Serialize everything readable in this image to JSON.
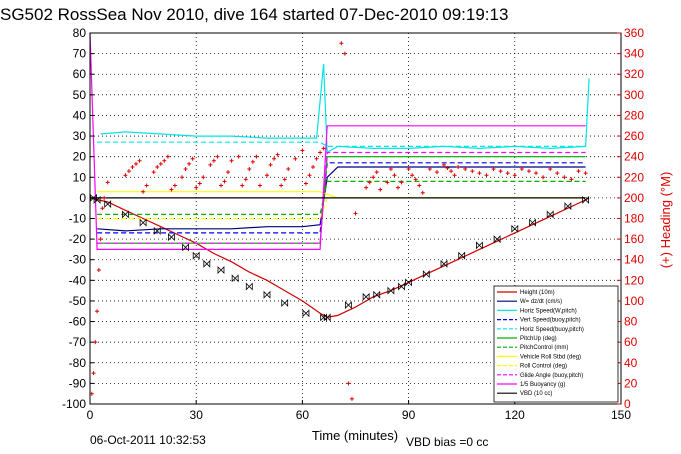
{
  "chart_data": {
    "type": "line",
    "title": "SG502 RossSea Nov 2010, dive 164 started 07-Dec-2010 09:19:13",
    "xlabel": "Time (minutes)",
    "ylabel": "",
    "ylabel_right": "(+) Heading (°M)",
    "xlim": [
      0,
      150
    ],
    "ylim": [
      -100,
      80
    ],
    "ylim_right": [
      0,
      360
    ],
    "x_ticks": [
      "0",
      "30",
      "60",
      "90",
      "120",
      "150"
    ],
    "y_ticks": [
      "-100",
      "-90",
      "-80",
      "-70",
      "-60",
      "-50",
      "-40",
      "-30",
      "-20",
      "-10",
      "0",
      "10",
      "20",
      "30",
      "40",
      "50",
      "60",
      "70",
      "80"
    ],
    "y_ticks_right": [
      "0",
      "20",
      "40",
      "60",
      "80",
      "100",
      "120",
      "140",
      "160",
      "180",
      "200",
      "220",
      "240",
      "260",
      "280",
      "300",
      "320",
      "340",
      "360"
    ],
    "grid": true,
    "legend_position": "bottom-right",
    "footer_left": "06-Oct-2011 10:32:53",
    "footer_right": "VBD bias =0 cc",
    "series": [
      {
        "name": "Height (10m)",
        "color": "#d00000",
        "style": "solid",
        "x": [
          0,
          5,
          10,
          15,
          20,
          25,
          30,
          35,
          40,
          45,
          50,
          55,
          60,
          65,
          67,
          70,
          75,
          80,
          85,
          90,
          95,
          100,
          105,
          110,
          115,
          120,
          125,
          130,
          135,
          140,
          141
        ],
        "y": [
          0,
          -2,
          -6,
          -10,
          -14,
          -18,
          -22,
          -27,
          -31,
          -36,
          -40,
          -45,
          -50,
          -56,
          -58,
          -57,
          -53,
          -48,
          -45,
          -41,
          -37,
          -33,
          -29,
          -25,
          -21,
          -17,
          -13,
          -9,
          -5,
          -1,
          0
        ]
      },
      {
        "name": "W= dz/dt (cm/s)",
        "color": "#000080",
        "style": "solid",
        "x": [
          2,
          10,
          20,
          30,
          40,
          50,
          60,
          65,
          67,
          70,
          80,
          90,
          100,
          110,
          120,
          130,
          140
        ],
        "y": [
          -15,
          -16,
          -15,
          -15,
          -15,
          -14,
          -14,
          -13,
          10,
          15,
          15,
          15,
          15,
          15,
          15,
          15,
          15
        ]
      },
      {
        "name": "Horiz Speed(W,pitch)",
        "color": "#00e5e5",
        "style": "solid",
        "x": [
          3,
          10,
          20,
          30,
          40,
          50,
          60,
          64,
          66,
          67,
          70,
          80,
          90,
          100,
          110,
          120,
          130,
          140,
          141
        ],
        "y": [
          31,
          32,
          31,
          30,
          30,
          29,
          29,
          29,
          65,
          22,
          25,
          24,
          24,
          25,
          24,
          25,
          24,
          25,
          58
        ]
      },
      {
        "name": "Vert Speed(buoy,pitch)",
        "color": "#0000ff",
        "style": "dashed",
        "x": [
          2,
          30,
          65,
          67,
          140
        ],
        "y": [
          -17,
          -17,
          -17,
          17,
          17
        ]
      },
      {
        "name": "Horiz Speed(buoy,pitch)",
        "color": "#00e5e5",
        "style": "dashed",
        "x": [
          2,
          30,
          65,
          67,
          140
        ],
        "y": [
          27,
          27,
          27,
          25,
          25
        ]
      },
      {
        "name": "PitchUp (deg)",
        "color": "#00b000",
        "style": "solid",
        "x": [
          2,
          30,
          65,
          67,
          140
        ],
        "y": [
          -22,
          -22,
          -22,
          20,
          20
        ]
      },
      {
        "name": "PitchControl (mm)",
        "color": "#00b000",
        "style": "dashed",
        "x": [
          2,
          30,
          65,
          67,
          140
        ],
        "y": [
          -8,
          -8,
          -8,
          8,
          8
        ]
      },
      {
        "name": "Vehicle Roll Stbd (deg)",
        "color": "#ffff00",
        "style": "solid",
        "x": [
          2,
          20,
          40,
          60,
          65,
          70,
          90,
          110,
          130,
          140
        ],
        "y": [
          3,
          3,
          3,
          3,
          3,
          0,
          0,
          0,
          0,
          0
        ]
      },
      {
        "name": "Roll Control (deg)",
        "color": "#ffff00",
        "style": "dashed",
        "x": [
          2,
          30,
          65,
          67,
          140
        ],
        "y": [
          -10,
          -10,
          -10,
          0,
          0
        ]
      },
      {
        "name": "Glide Angle (buoy,pitch)",
        "color": "#ff00ff",
        "style": "dashed",
        "x": [
          2,
          30,
          65,
          67,
          140
        ],
        "y": [
          -22,
          -22,
          -22,
          22,
          22
        ]
      },
      {
        "name": "1/5 Buoyancy (g)",
        "color": "#ff00ff",
        "style": "solid",
        "x": [
          0,
          2,
          30,
          65,
          67,
          140
        ],
        "y": [
          80,
          -25,
          -25,
          -25,
          35,
          35
        ]
      },
      {
        "name": "VBD (10 cc)",
        "color": "#000000",
        "style": "solid",
        "x": [
          0,
          140
        ],
        "y": [
          0,
          0
        ]
      }
    ],
    "heading_points": {
      "name": "(+) Heading (°M)",
      "color": "#e00000",
      "x": [
        0.5,
        1,
        1.5,
        2,
        2.5,
        3,
        3.5,
        4,
        5,
        10,
        11,
        12,
        13,
        14,
        15,
        16,
        18,
        19,
        20,
        21,
        22,
        23,
        24,
        26,
        27,
        28,
        29,
        30,
        31,
        32,
        34,
        35,
        36,
        37,
        38,
        39,
        40,
        42,
        43,
        44,
        45,
        46,
        47,
        48,
        50,
        51,
        52,
        53,
        54,
        55,
        56,
        58,
        60,
        61,
        62,
        63,
        64,
        65,
        66,
        71,
        72,
        73,
        74,
        75,
        78,
        79,
        80,
        81,
        82,
        84,
        85,
        86,
        87,
        88,
        90,
        91,
        92,
        93,
        94,
        96,
        98,
        100,
        101,
        102,
        103,
        104,
        106,
        108,
        110,
        112,
        114,
        116,
        118,
        120,
        122,
        124,
        126,
        128,
        130,
        132,
        134,
        136,
        138,
        140
      ],
      "y": [
        10,
        30,
        60,
        90,
        130,
        160,
        190,
        200,
        215,
        222,
        226,
        230,
        233,
        236,
        206,
        212,
        225,
        230,
        233,
        236,
        240,
        208,
        212,
        220,
        228,
        233,
        238,
        210,
        214,
        220,
        232,
        236,
        240,
        212,
        216,
        225,
        236,
        240,
        212,
        218,
        228,
        235,
        240,
        212,
        222,
        232,
        238,
        242,
        212,
        218,
        228,
        238,
        246,
        214,
        222,
        230,
        238,
        244,
        248,
        350,
        340,
        20,
        5,
        185,
        210,
        215,
        220,
        225,
        208,
        215,
        228,
        222,
        210,
        215,
        228,
        222,
        218,
        212,
        205,
        228,
        225,
        232,
        229,
        226,
        222,
        230,
        228,
        226,
        224,
        222,
        228,
        226,
        224,
        222,
        228,
        226,
        224,
        220,
        228,
        224,
        220,
        218,
        226,
        224
      ]
    },
    "vbd_markers": {
      "name": "VBD markers",
      "x": [
        1,
        2,
        5,
        10,
        15,
        19,
        23,
        27,
        30,
        33,
        37,
        41,
        45,
        50,
        55,
        61,
        66,
        67,
        73,
        78,
        81,
        85,
        88,
        90,
        95,
        100,
        105,
        110,
        115,
        120,
        125,
        130,
        135,
        140
      ],
      "y": [
        0,
        -1,
        -3,
        -8,
        -12,
        -16,
        -19,
        -24,
        -28,
        -32,
        -35,
        -39,
        -43,
        -47,
        -51,
        -56,
        -58,
        -58,
        -52,
        -48,
        -47,
        -45,
        -43,
        -41,
        -37,
        -32,
        -28,
        -23,
        -20,
        -15,
        -12,
        -8,
        -4,
        -1
      ]
    }
  }
}
